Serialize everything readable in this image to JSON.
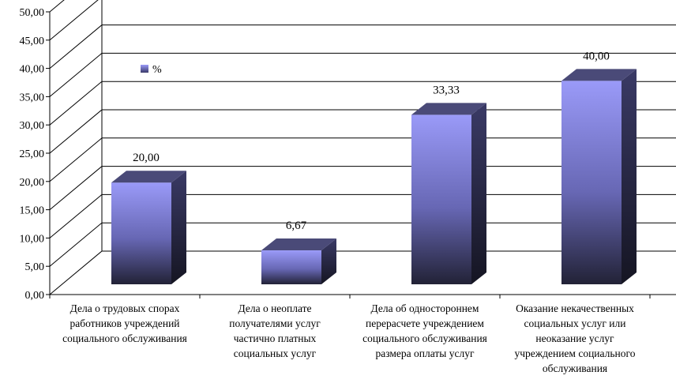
{
  "chart_data": {
    "type": "bar",
    "categories": [
      [
        "Дела о трудовых спорах",
        "работников учреждений",
        "социального обслуживания"
      ],
      [
        "Дела о неоплате",
        "получателями услуг",
        "частично платных",
        "социальных услуг"
      ],
      [
        "Дела об одностороннем",
        "перерасчете учреждением",
        "социального обслуживания",
        "размера оплаты услуг"
      ],
      [
        "Оказание некачественных",
        "социальных услуг или",
        "неоказание услуг",
        "учреждением социального",
        "обслуживания"
      ]
    ],
    "series": [
      {
        "name": "%",
        "values": [
          20.0,
          6.67,
          33.33,
          40.0
        ]
      }
    ],
    "value_labels": [
      "20,00",
      "6,67",
      "33,33",
      "40,00"
    ],
    "y_ticks": [
      "0,00",
      "5,00",
      "10,00",
      "15,00",
      "20,00",
      "25,00",
      "30,00",
      "35,00",
      "40,00",
      "45,00",
      "50,00"
    ],
    "ylim": [
      0,
      50
    ],
    "legend": "inside top-left",
    "grid": true,
    "style": "3d",
    "colors": {
      "bar_front_top": "#9a9af8",
      "bar_front_bottom": "#222236",
      "bar_side": "#2c2c4a",
      "bar_top": "#4a4a78"
    }
  }
}
